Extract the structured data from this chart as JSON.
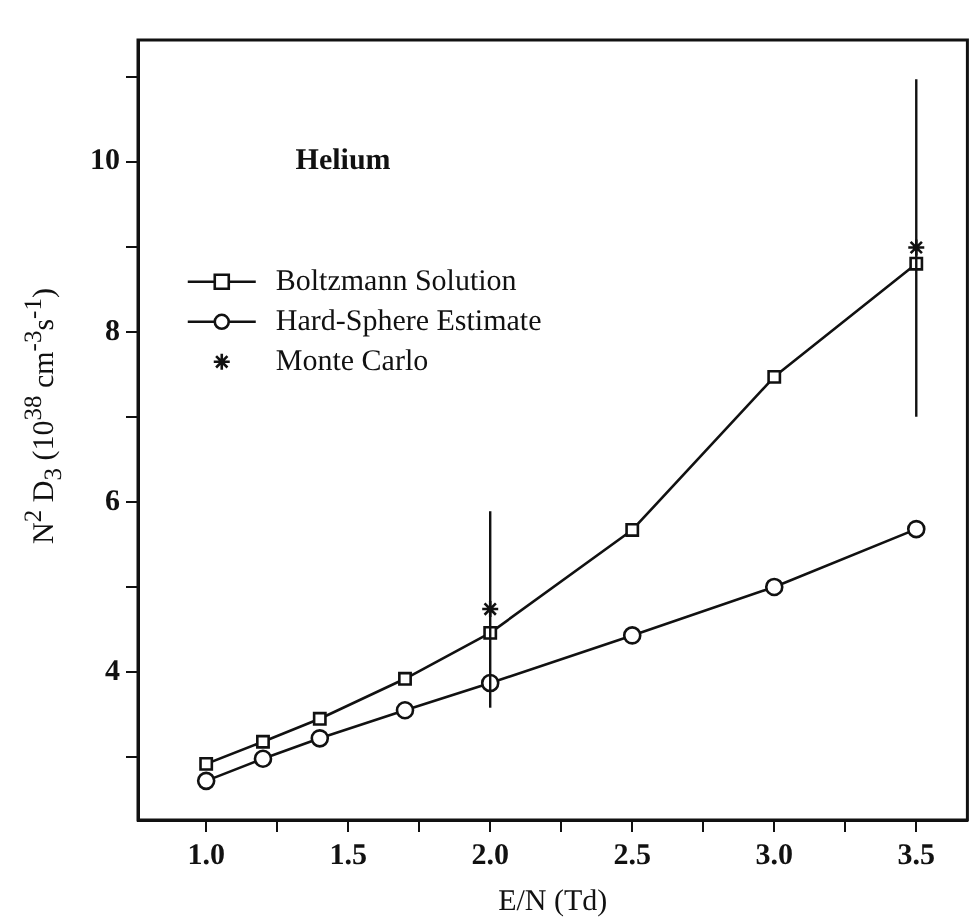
{
  "chart_data": {
    "type": "line",
    "xlabel": "E/N (Td)",
    "ylabel": "N$^{2}$ D$_{3}$ (10$^{38}$ cm$^{-3}$s$^{-1}$)",
    "annotations": [
      "Helium"
    ],
    "legend": "left",
    "line_style": "solid",
    "xlim": [
      0.76,
      3.68
    ],
    "ylim": [
      2.26,
      11.43
    ],
    "xticks": [
      {
        "value": 1,
        "label": "1.0"
      },
      {
        "value": 1.25,
        "label": null
      },
      {
        "value": 1.5,
        "label": "1.5"
      },
      {
        "value": 1.75,
        "label": null
      },
      {
        "value": 2,
        "label": "2.0"
      },
      {
        "value": 2.25,
        "label": null
      },
      {
        "value": 2.5,
        "label": "2.5"
      },
      {
        "value": 2.75,
        "label": null
      },
      {
        "value": 3,
        "label": "3.0"
      },
      {
        "value": 3.25,
        "label": null
      },
      {
        "value": 3.5,
        "label": "3.5"
      }
    ],
    "yticks": [
      {
        "value": 3,
        "label": null
      },
      4,
      {
        "value": 5,
        "label": null
      },
      6,
      {
        "value": 7,
        "label": null
      },
      8,
      {
        "value": 9,
        "label": null
      },
      10,
      {
        "value": 11,
        "label": null
      }
    ],
    "series": [
      {
        "name": "Boltzmann Solution",
        "type": "line",
        "marker": "square",
        "color": "#111111",
        "x": [
          1.0,
          1.2,
          1.4,
          1.7,
          2.0,
          2.5,
          3.0,
          3.5
        ],
        "values": [
          2.92,
          3.18,
          3.45,
          3.92,
          4.46,
          5.67,
          7.47,
          8.8
        ]
      },
      {
        "name": "Hard-Sphere Estimate",
        "type": "line",
        "marker": "circle",
        "color": "#111111",
        "x": [
          1.0,
          1.2,
          1.4,
          1.7,
          2.0,
          2.5,
          3.0,
          3.5
        ],
        "values": [
          2.72,
          2.98,
          3.22,
          3.55,
          3.87,
          4.43,
          5.0,
          5.68
        ]
      },
      {
        "name": "Monte Carlo",
        "type": "scatter",
        "marker": "cross",
        "color": "#111111",
        "x": [
          2.0,
          3.5
        ],
        "values": [
          4.74,
          8.99
        ],
        "errors": [
          [
            3.58,
            5.89
          ],
          [
            7.0,
            10.97
          ]
        ]
      }
    ]
  }
}
